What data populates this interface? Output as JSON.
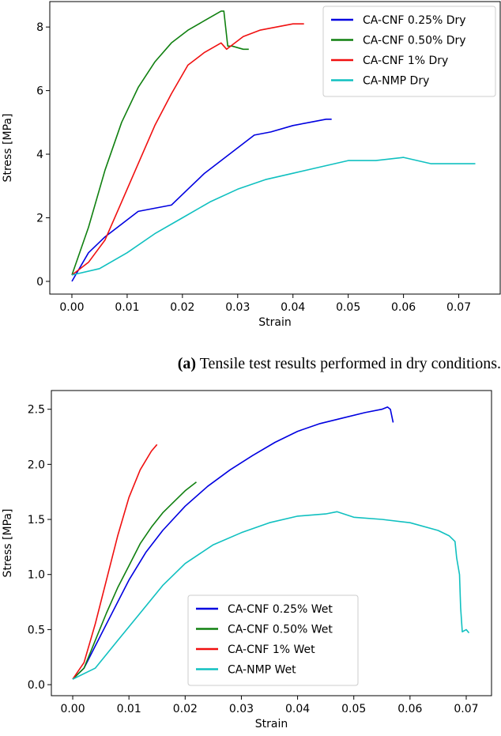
{
  "caption": {
    "label": "(a)",
    "text": "Tensile test results performed in dry conditions."
  },
  "chart_data": [
    {
      "type": "line",
      "xlabel": "Strain",
      "ylabel": "Stress [MPa]",
      "xlim": [
        -0.004,
        0.0775
      ],
      "ylim": [
        -0.4,
        8.8
      ],
      "xticks": [
        0.0,
        0.01,
        0.02,
        0.03,
        0.04,
        0.05,
        0.06,
        0.07
      ],
      "xtick_labels": [
        "0.00",
        "0.01",
        "0.02",
        "0.03",
        "0.04",
        "0.05",
        "0.06",
        "0.07"
      ],
      "yticks": [
        0,
        2,
        4,
        6,
        8
      ],
      "ytick_labels": [
        "0",
        "2",
        "4",
        "6",
        "8"
      ],
      "grid": false,
      "legend_position": "top-right",
      "series": [
        {
          "name": "CA-CNF 0.25% Dry",
          "color": "#0000e0",
          "x": [
            0,
            0.003,
            0.006,
            0.009,
            0.012,
            0.015,
            0.018,
            0.021,
            0.024,
            0.027,
            0.03,
            0.033,
            0.036,
            0.04,
            0.043,
            0.046,
            0.047
          ],
          "y": [
            0.0,
            0.9,
            1.4,
            1.8,
            2.2,
            2.3,
            2.4,
            2.9,
            3.4,
            3.8,
            4.2,
            4.6,
            4.7,
            4.9,
            5.0,
            5.1,
            5.1
          ]
        },
        {
          "name": "CA-CNF 0.50% Dry",
          "color": "#108010",
          "x": [
            0,
            0.003,
            0.006,
            0.009,
            0.012,
            0.015,
            0.018,
            0.021,
            0.024,
            0.027,
            0.0275,
            0.0282,
            0.029,
            0.031,
            0.032
          ],
          "y": [
            0.2,
            1.7,
            3.5,
            5.0,
            6.1,
            6.9,
            7.5,
            7.9,
            8.2,
            8.5,
            8.5,
            7.4,
            7.4,
            7.3,
            7.3
          ]
        },
        {
          "name": "CA-CNF 1% Dry",
          "color": "#f01010",
          "x": [
            0,
            0.003,
            0.006,
            0.009,
            0.012,
            0.015,
            0.018,
            0.021,
            0.024,
            0.027,
            0.028,
            0.031,
            0.034,
            0.037,
            0.04,
            0.042
          ],
          "y": [
            0.2,
            0.6,
            1.3,
            2.5,
            3.7,
            4.9,
            5.9,
            6.8,
            7.2,
            7.5,
            7.3,
            7.7,
            7.9,
            8.0,
            8.1,
            8.1
          ]
        },
        {
          "name": "CA-NMP Dry",
          "color": "#10c0c0",
          "x": [
            0,
            0.005,
            0.01,
            0.015,
            0.02,
            0.025,
            0.03,
            0.035,
            0.04,
            0.045,
            0.05,
            0.055,
            0.06,
            0.065,
            0.07,
            0.073
          ],
          "y": [
            0.2,
            0.4,
            0.9,
            1.5,
            2.0,
            2.5,
            2.9,
            3.2,
            3.4,
            3.6,
            3.8,
            3.8,
            3.9,
            3.7,
            3.7,
            3.7
          ]
        }
      ]
    },
    {
      "type": "line",
      "xlabel": "Strain",
      "ylabel": "Stress [MPa]",
      "xlim": [
        -0.0038,
        0.0745
      ],
      "ylim": [
        -0.1,
        2.67
      ],
      "xticks": [
        0.0,
        0.01,
        0.02,
        0.03,
        0.04,
        0.05,
        0.06,
        0.07
      ],
      "xtick_labels": [
        "0.00",
        "0.01",
        "0.02",
        "0.03",
        "0.04",
        "0.05",
        "0.06",
        "0.07"
      ],
      "yticks": [
        0.0,
        0.5,
        1.0,
        1.5,
        2.0,
        2.5
      ],
      "ytick_labels": [
        "0.0",
        "0.5",
        "1.0",
        "1.5",
        "2.0",
        "2.5"
      ],
      "grid": false,
      "legend_position": "lower-center",
      "series": [
        {
          "name": "CA-CNF 0.25% Wet",
          "color": "#0000e0",
          "x": [
            0,
            0.002,
            0.004,
            0.006,
            0.008,
            0.01,
            0.013,
            0.016,
            0.02,
            0.024,
            0.028,
            0.032,
            0.036,
            0.04,
            0.044,
            0.048,
            0.052,
            0.055,
            0.056,
            0.0565,
            0.057
          ],
          "y": [
            0.05,
            0.15,
            0.35,
            0.55,
            0.75,
            0.95,
            1.2,
            1.4,
            1.62,
            1.8,
            1.95,
            2.08,
            2.2,
            2.3,
            2.37,
            2.42,
            2.47,
            2.5,
            2.52,
            2.5,
            2.38
          ]
        },
        {
          "name": "CA-CNF 0.50% Wet",
          "color": "#108010",
          "x": [
            0,
            0.002,
            0.004,
            0.006,
            0.008,
            0.01,
            0.012,
            0.014,
            0.016,
            0.018,
            0.02,
            0.022
          ],
          "y": [
            0.05,
            0.15,
            0.4,
            0.65,
            0.88,
            1.08,
            1.28,
            1.43,
            1.56,
            1.66,
            1.76,
            1.84
          ]
        },
        {
          "name": "CA-CNF 1% Wet",
          "color": "#f01010",
          "x": [
            0,
            0.002,
            0.004,
            0.006,
            0.008,
            0.01,
            0.012,
            0.014,
            0.015
          ],
          "y": [
            0.05,
            0.2,
            0.55,
            0.95,
            1.35,
            1.7,
            1.95,
            2.12,
            2.18
          ]
        },
        {
          "name": "CA-NMP Wet",
          "color": "#10c0c0",
          "x": [
            0,
            0.004,
            0.008,
            0.012,
            0.016,
            0.02,
            0.025,
            0.03,
            0.035,
            0.04,
            0.045,
            0.047,
            0.05,
            0.055,
            0.06,
            0.065,
            0.067,
            0.068,
            0.0683,
            0.0688,
            0.069,
            0.0693,
            0.07,
            0.0705
          ],
          "y": [
            0.05,
            0.15,
            0.4,
            0.65,
            0.9,
            1.1,
            1.27,
            1.38,
            1.47,
            1.53,
            1.55,
            1.57,
            1.52,
            1.5,
            1.47,
            1.4,
            1.35,
            1.3,
            1.15,
            1.0,
            0.7,
            0.48,
            0.5,
            0.47
          ]
        }
      ]
    }
  ]
}
